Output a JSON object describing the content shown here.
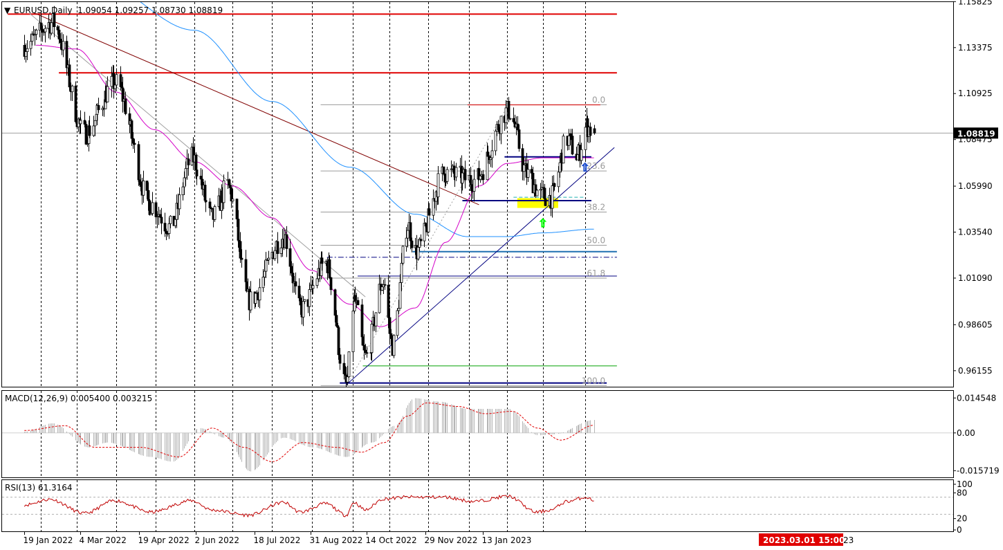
{
  "main_header": {
    "symbol_line": "EURUSD,Daily  1.09054 1.09257 1.08730 1.08819"
  },
  "macd_header": "MACD(12,26,9) 0.005400 0.003215",
  "rsi_header": "RSI(13) 61.3164",
  "current_price_box": "1.08819",
  "crosshair_time_box": "2023.03.01 15:00",
  "colors": {
    "bull": "#ffffff",
    "bear": "#000000",
    "ma50": "#d400c8",
    "ma200": "#1e90ff",
    "resistance": "#e00000",
    "trend": "#000080",
    "fib": "#9a9a9a",
    "macd_signal": "#e00000",
    "rsi": "#c00000",
    "crosshair_box": "#e00000",
    "zone": "#ffff00"
  },
  "chart_data": {
    "type": "candlestick",
    "symbol": "EURUSD",
    "timeframe": "Daily",
    "last_bar": {
      "open": 1.09054,
      "high": 1.09257,
      "low": 1.0873,
      "close": 1.08819
    },
    "ylim": [
      0.953,
      1.158
    ],
    "price_ticks": [
      "1.15825",
      "1.13375",
      "1.10925",
      "1.08475",
      "1.05990",
      "1.03540",
      "1.01090",
      "0.98605",
      "0.96155"
    ],
    "price_tick_values": [
      1.15825,
      1.13375,
      1.10925,
      1.08475,
      1.0599,
      1.0354,
      1.0109,
      0.98605,
      0.96155
    ],
    "date_ticks": [
      "19 Jan 2022",
      "4 Mar 2022",
      "19 Apr 2022",
      "2 Jun 2022",
      "18 Jul 2022",
      "31 Aug 2022",
      "14 Oct 2022",
      "29 Nov 2022",
      "13 Jan 2023"
    ],
    "date_tick_partial": "23",
    "anchors": [
      {
        "date": "2022-01-19",
        "price": 1.135
      },
      {
        "date": "2022-02-10",
        "price": 1.147
      },
      {
        "date": "2022-03-07",
        "price": 1.088
      },
      {
        "date": "2022-03-31",
        "price": 1.115
      },
      {
        "date": "2022-04-28",
        "price": 1.05
      },
      {
        "date": "2022-05-13",
        "price": 1.038
      },
      {
        "date": "2022-05-30",
        "price": 1.075
      },
      {
        "date": "2022-06-15",
        "price": 1.043
      },
      {
        "date": "2022-06-27",
        "price": 1.06
      },
      {
        "date": "2022-07-14",
        "price": 0.999
      },
      {
        "date": "2022-08-10",
        "price": 1.033
      },
      {
        "date": "2022-08-23",
        "price": 0.994
      },
      {
        "date": "2022-09-12",
        "price": 1.019
      },
      {
        "date": "2022-09-28",
        "price": 0.954
      },
      {
        "date": "2022-10-04",
        "price": 0.999
      },
      {
        "date": "2022-10-13",
        "price": 0.969
      },
      {
        "date": "2022-10-27",
        "price": 1.009
      },
      {
        "date": "2022-11-03",
        "price": 0.975
      },
      {
        "date": "2022-11-15",
        "price": 1.039
      },
      {
        "date": "2022-11-21",
        "price": 1.025
      },
      {
        "date": "2022-12-14",
        "price": 1.067
      },
      {
        "date": "2023-01-06",
        "price": 1.063
      },
      {
        "date": "2023-02-02",
        "price": 1.1
      },
      {
        "date": "2023-02-17",
        "price": 1.066
      },
      {
        "date": "2023-02-27",
        "price": 1.055
      },
      {
        "date": "2023-03-07",
        "price": 1.054
      },
      {
        "date": "2023-03-20",
        "price": 1.085
      },
      {
        "date": "2023-03-28",
        "price": 1.076
      },
      {
        "date": "2023-04-04",
        "price": 1.092
      },
      {
        "date": "2023-04-10",
        "price": 1.088
      }
    ],
    "ma50_anchors": [
      {
        "date": "2022-01-28",
        "price": 1.135
      },
      {
        "date": "2022-03-01",
        "price": 1.133
      },
      {
        "date": "2022-04-01",
        "price": 1.11
      },
      {
        "date": "2022-05-01",
        "price": 1.09
      },
      {
        "date": "2022-06-01",
        "price": 1.073
      },
      {
        "date": "2022-07-01",
        "price": 1.06
      },
      {
        "date": "2022-08-01",
        "price": 1.043
      },
      {
        "date": "2022-09-01",
        "price": 1.015
      },
      {
        "date": "2022-10-01",
        "price": 0.997
      },
      {
        "date": "2022-10-25",
        "price": 0.985
      },
      {
        "date": "2022-11-21",
        "price": 0.995
      },
      {
        "date": "2022-12-15",
        "price": 1.03
      },
      {
        "date": "2023-01-10",
        "price": 1.06
      },
      {
        "date": "2023-02-01",
        "price": 1.072
      },
      {
        "date": "2023-03-01",
        "price": 1.075
      },
      {
        "date": "2023-04-10",
        "price": 1.075
      }
    ],
    "ma200_anchors": [
      {
        "date": "2022-01-19",
        "price": 1.19
      },
      {
        "date": "2022-03-15",
        "price": 1.17
      },
      {
        "date": "2022-06-01",
        "price": 1.143
      },
      {
        "date": "2022-08-01",
        "price": 1.105
      },
      {
        "date": "2022-10-01",
        "price": 1.07
      },
      {
        "date": "2022-11-21",
        "price": 1.045
      },
      {
        "date": "2023-01-01",
        "price": 1.033
      },
      {
        "date": "2023-02-01",
        "price": 1.033
      },
      {
        "date": "2023-03-01",
        "price": 1.035
      },
      {
        "date": "2023-04-10",
        "price": 1.037
      }
    ],
    "horizontal_levels": [
      {
        "price": 1.1516,
        "from": "2022-01-06",
        "to": "2023-04-28",
        "color": "#e00000",
        "width": 2
      },
      {
        "price": 1.1203,
        "from": "2022-02-15",
        "to": "2023-04-28",
        "color": "#e00000",
        "width": 2
      },
      {
        "price": 1.1032,
        "from": "2023-01-01",
        "to": "2023-04-15",
        "color": "#e00000",
        "width": 1
      },
      {
        "price": 1.0755,
        "from": "2023-01-30",
        "to": "2023-04-08",
        "color": "#000080",
        "width": 2
      },
      {
        "price": 1.0522,
        "from": "2022-12-28",
        "to": "2023-04-08",
        "color": "#000080",
        "width": 2
      },
      {
        "price": 1.025,
        "from": "2022-11-19",
        "to": "2023-04-28",
        "color": "#1e6fb0",
        "width": 2
      },
      {
        "price": 1.022,
        "from": "2022-09-13",
        "to": "2023-04-28",
        "color": "#000080",
        "width": 1,
        "dash": true
      },
      {
        "price": 1.012,
        "from": "2022-10-07",
        "to": "2023-04-28",
        "color": "#000080",
        "width": 1
      },
      {
        "price": 0.9641,
        "from": "2022-10-11",
        "to": "2023-04-28",
        "color": "#00a000",
        "width": 1
      },
      {
        "price": 0.955,
        "from": "2022-09-23",
        "to": "2023-04-20",
        "color": "#000080",
        "width": 2
      }
    ],
    "diagonal_lines": [
      {
        "from": {
          "date": "2022-01-26",
          "price": 1.1524
        },
        "to": {
          "date": "2023-01-10",
          "price": 1.05
        },
        "color": "#800000"
      },
      {
        "from": {
          "date": "2022-01-23",
          "price": 1.152
        },
        "to": {
          "date": "2022-10-13",
          "price": 1.0009
        },
        "color": "#a0a0a0"
      },
      {
        "from": {
          "date": "2022-09-28",
          "price": 0.954
        },
        "to": {
          "date": "2023-04-26",
          "price": 1.0805
        },
        "color": "#000080"
      }
    ],
    "fibonacci": {
      "from": {
        "date": "2022-09-28",
        "price": 0.9536
      },
      "to": {
        "date": "2023-02-02",
        "price": 1.1033
      },
      "start_date": "2022-09-08",
      "end_date": "2023-04-20",
      "levels": [
        {
          "ratio": 0.0,
          "label": "0.0",
          "price": 1.1033
        },
        {
          "ratio": 0.236,
          "label": "23.6",
          "price": 1.068
        },
        {
          "ratio": 0.382,
          "label": "38.2",
          "price": 1.0461
        },
        {
          "ratio": 0.5,
          "label": "50.0",
          "price": 1.0284
        },
        {
          "ratio": 0.618,
          "label": "61.8",
          "price": 1.0109
        },
        {
          "ratio": 1.0,
          "label": "100.0",
          "price": 0.9536
        }
      ]
    },
    "zone": {
      "from": "2023-02-09",
      "to": "2023-03-13",
      "top": 1.0535,
      "bottom": 1.0505
    },
    "zone_dash": {
      "price": 1.054,
      "from": "2023-02-06",
      "to": "2023-04-02"
    },
    "up_arrows": [
      {
        "date": "2023-03-01",
        "price": 1.0408,
        "color": "#00ff00"
      },
      {
        "date": "2023-04-03",
        "price": 1.0705,
        "color": "#2050d0"
      }
    ],
    "macd": {
      "ylim": [
        -0.0185,
        0.0175
      ],
      "ticks": [
        "0.014548",
        "0.00",
        "-0.015719"
      ],
      "tick_values": [
        0.014548,
        0.0,
        -0.015719
      ],
      "hist_anchors": [
        {
          "date": "2022-01-19",
          "value": 0.0005
        },
        {
          "date": "2022-02-10",
          "value": 0.004
        },
        {
          "date": "2022-03-10",
          "value": -0.006
        },
        {
          "date": "2022-03-25",
          "value": -0.004
        },
        {
          "date": "2022-04-28",
          "value": -0.01
        },
        {
          "date": "2022-05-15",
          "value": -0.012
        },
        {
          "date": "2022-06-05",
          "value": 0.002
        },
        {
          "date": "2022-06-25",
          "value": -0.002
        },
        {
          "date": "2022-07-15",
          "value": -0.016
        },
        {
          "date": "2022-08-10",
          "value": -0.002
        },
        {
          "date": "2022-09-01",
          "value": -0.006
        },
        {
          "date": "2022-09-28",
          "value": -0.01
        },
        {
          "date": "2022-10-18",
          "value": -0.004
        },
        {
          "date": "2022-11-05",
          "value": 0.003
        },
        {
          "date": "2022-11-20",
          "value": 0.0145
        },
        {
          "date": "2022-12-10",
          "value": 0.013
        },
        {
          "date": "2023-01-01",
          "value": 0.01
        },
        {
          "date": "2023-02-02",
          "value": 0.01
        },
        {
          "date": "2023-02-25",
          "value": -0.001
        },
        {
          "date": "2023-03-10",
          "value": -0.0005
        },
        {
          "date": "2023-04-10",
          "value": 0.0054
        }
      ],
      "signal_anchors": [
        {
          "date": "2022-01-19",
          "value": 0.001
        },
        {
          "date": "2022-02-20",
          "value": 0.003
        },
        {
          "date": "2022-03-15",
          "value": -0.006
        },
        {
          "date": "2022-04-20",
          "value": -0.006
        },
        {
          "date": "2022-05-20",
          "value": -0.01
        },
        {
          "date": "2022-06-15",
          "value": 0.002
        },
        {
          "date": "2022-07-10",
          "value": -0.006
        },
        {
          "date": "2022-08-01",
          "value": -0.012
        },
        {
          "date": "2022-08-25",
          "value": -0.004
        },
        {
          "date": "2022-09-20",
          "value": -0.006
        },
        {
          "date": "2022-10-10",
          "value": -0.008
        },
        {
          "date": "2022-10-28",
          "value": -0.004
        },
        {
          "date": "2022-11-15",
          "value": 0.007
        },
        {
          "date": "2022-11-30",
          "value": 0.0125
        },
        {
          "date": "2022-12-25",
          "value": 0.011
        },
        {
          "date": "2023-01-15",
          "value": 0.008
        },
        {
          "date": "2023-02-05",
          "value": 0.009
        },
        {
          "date": "2023-02-25",
          "value": 0.002
        },
        {
          "date": "2023-03-15",
          "value": -0.003
        },
        {
          "date": "2023-04-10",
          "value": 0.0032
        }
      ]
    },
    "rsi": {
      "ylim": [
        0,
        100
      ],
      "ticks": [
        "100",
        "80",
        "20",
        "0"
      ],
      "tick_values": [
        100,
        80,
        20,
        0
      ],
      "levels": [
        70,
        30
      ],
      "anchors": [
        {
          "date": "2022-01-19",
          "value": 52
        },
        {
          "date": "2022-02-08",
          "value": 65
        },
        {
          "date": "2022-03-07",
          "value": 32
        },
        {
          "date": "2022-03-31",
          "value": 62
        },
        {
          "date": "2022-04-28",
          "value": 35
        },
        {
          "date": "2022-05-30",
          "value": 62
        },
        {
          "date": "2022-06-15",
          "value": 40
        },
        {
          "date": "2022-07-14",
          "value": 28
        },
        {
          "date": "2022-08-10",
          "value": 58
        },
        {
          "date": "2022-08-23",
          "value": 35
        },
        {
          "date": "2022-09-12",
          "value": 55
        },
        {
          "date": "2022-09-28",
          "value": 28
        },
        {
          "date": "2022-10-04",
          "value": 58
        },
        {
          "date": "2022-10-13",
          "value": 40
        },
        {
          "date": "2022-10-27",
          "value": 66
        },
        {
          "date": "2022-11-15",
          "value": 70
        },
        {
          "date": "2022-12-14",
          "value": 70
        },
        {
          "date": "2023-01-06",
          "value": 60
        },
        {
          "date": "2023-02-02",
          "value": 72
        },
        {
          "date": "2023-02-24",
          "value": 35
        },
        {
          "date": "2023-03-07",
          "value": 40
        },
        {
          "date": "2023-03-20",
          "value": 60
        },
        {
          "date": "2023-04-04",
          "value": 70
        },
        {
          "date": "2023-04-10",
          "value": 61.3
        }
      ]
    }
  }
}
